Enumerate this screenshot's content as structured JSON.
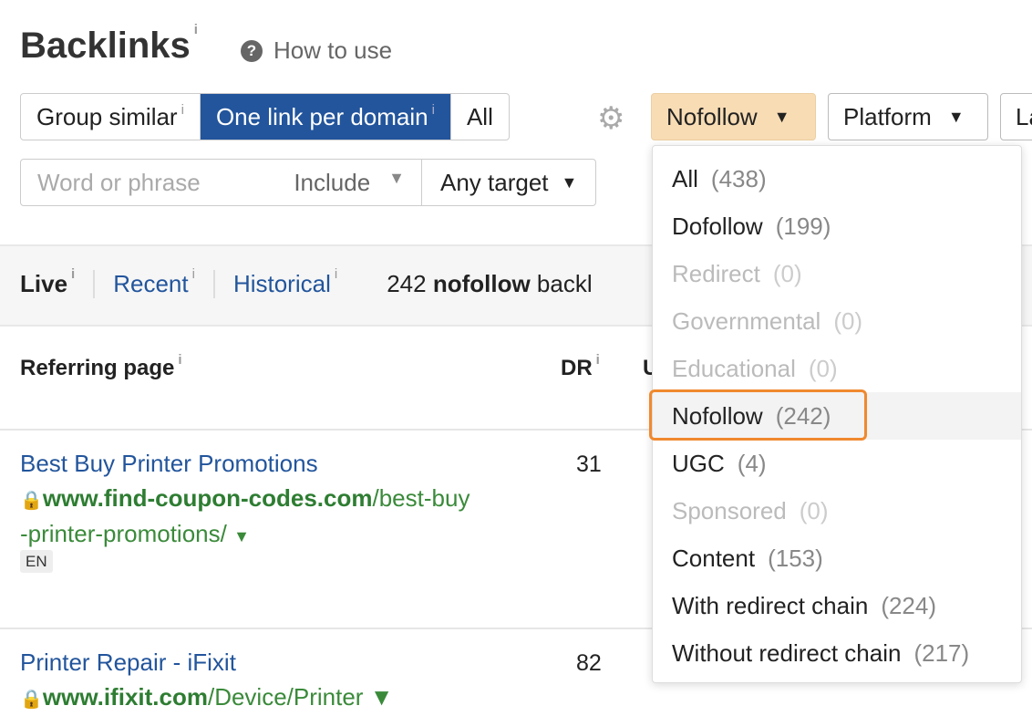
{
  "header": {
    "title": "Backlinks",
    "info": "i",
    "how_to_use": "How to use"
  },
  "mode": {
    "items": [
      {
        "label": "Group similar",
        "info": "i"
      },
      {
        "label": "One link per domain",
        "info": "i",
        "active": true
      },
      {
        "label": "All"
      }
    ]
  },
  "filters": {
    "link_type": "Nofollow",
    "platform": "Platform",
    "next_partial": "La",
    "search_placeholder": "Word or phrase",
    "include": "Include",
    "target": "Any target"
  },
  "tabs": {
    "live": "Live",
    "recent": "Recent",
    "historical": "Historical",
    "summary_count": "242",
    "summary_bold": "nofollow",
    "summary_rest": "backl"
  },
  "table": {
    "headers": {
      "referring_page": "Referring page",
      "dr": "DR",
      "next_partial": "U"
    },
    "rows": [
      {
        "title": "Best Buy Printer Promotions",
        "domain": "www.find-coupon-codes.com",
        "path": "/best-buy",
        "path2": "-printer-promotions/",
        "lang": "EN",
        "dr": "31"
      },
      {
        "title": "Printer Repair - iFixit",
        "domain": "www.ifixit.com",
        "path": "/Device/Printer",
        "dr": "82"
      }
    ]
  },
  "dropdown": {
    "items": [
      {
        "label": "All",
        "count": "(438)"
      },
      {
        "label": "Dofollow",
        "count": "(199)"
      },
      {
        "label": "Redirect",
        "count": "(0)",
        "disabled": true
      },
      {
        "label": "Governmental",
        "count": "(0)",
        "disabled": true
      },
      {
        "label": "Educational",
        "count": "(0)",
        "disabled": true
      },
      {
        "label": "Nofollow",
        "count": "(242)",
        "selected": true
      },
      {
        "label": "UGC",
        "count": "(4)"
      },
      {
        "label": "Sponsored",
        "count": "(0)",
        "disabled": true
      },
      {
        "label": "Content",
        "count": "(153)"
      },
      {
        "label": "With redirect chain",
        "count": "(224)"
      },
      {
        "label": "Without redirect chain",
        "count": "(217)"
      }
    ]
  },
  "colors": {
    "accent": "#22559c",
    "filter_active": "#f8dcb4",
    "highlight": "#f0892e",
    "url_green": "#3a8a3a"
  }
}
